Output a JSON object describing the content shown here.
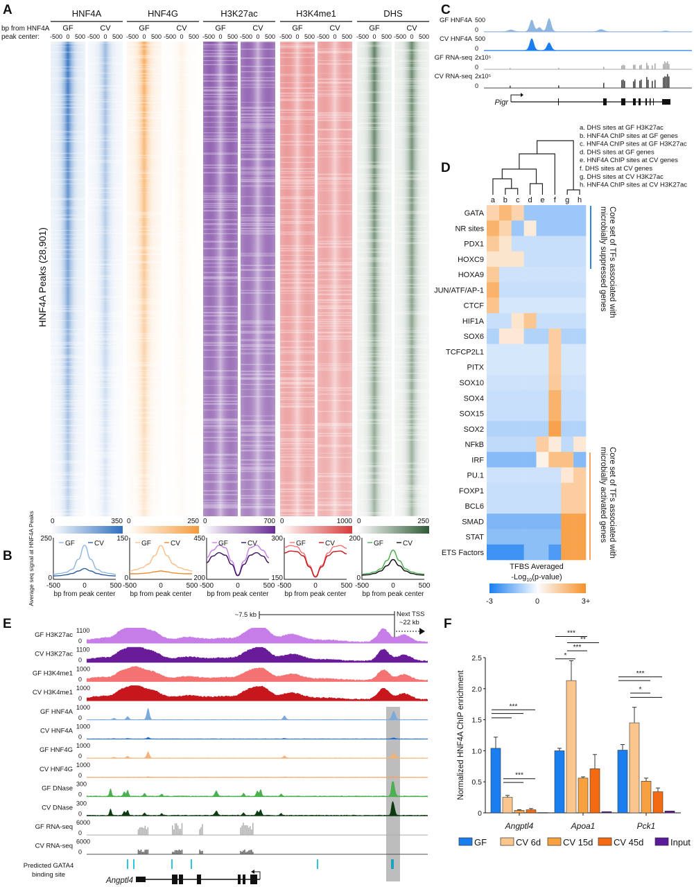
{
  "panels": {
    "A": "A",
    "B": "B",
    "C": "C",
    "D": "D",
    "E": "E",
    "F": "F"
  },
  "panelA": {
    "axis_label_1": "bp from HNF4A",
    "axis_label_2": "peak center:",
    "y_label": "HNF4A Peaks (28,901)",
    "conditions": [
      "GF",
      "CV"
    ],
    "ticks": [
      "-500",
      "0",
      "500"
    ],
    "colorbar_min": "0",
    "tracks": [
      {
        "name": "HNF4A",
        "color": "#2f6fbf",
        "max": "350"
      },
      {
        "name": "HNF4G",
        "color": "#f59a3c",
        "max": "250"
      },
      {
        "name": "H3K27ac",
        "color": "#6a2b95",
        "max": "700"
      },
      {
        "name": "H3K4me1",
        "color": "#d83a3a",
        "max": "1000"
      },
      {
        "name": "DHS",
        "color": "#2f5a35",
        "max": "250"
      }
    ]
  },
  "panelC": {
    "tracks": [
      {
        "label": "GF HNF4A",
        "scale": "500",
        "zero": "0",
        "color": "#8fb6e0"
      },
      {
        "label": "CV HNF4A",
        "scale": "500",
        "zero": "0",
        "color": "#1a7ef0"
      },
      {
        "label": "GF RNA-seq",
        "scale": "2x10⁵",
        "zero": "0",
        "color": "#a8a8a8"
      },
      {
        "label": "CV RNA-seq",
        "scale": "2x10⁵",
        "zero": "0",
        "color": "#444444"
      }
    ],
    "gene": "Pigr"
  },
  "panelE": {
    "scale_bar": "~7.5 kb",
    "next_tss_1": "Next TSS",
    "next_tss_2": "~22 kb",
    "tracks": [
      {
        "label": "GF H3K27ac",
        "scale": "1100",
        "zero": "0",
        "color": "#c77de8"
      },
      {
        "label": "CV H3K27ac",
        "scale": "1100",
        "zero": "0",
        "color": "#6a1b9a"
      },
      {
        "label": "GF H3K4me1",
        "scale": "1000",
        "zero": "0",
        "color": "#f47272"
      },
      {
        "label": "CV H3K4me1",
        "scale": "1000",
        "zero": "0",
        "color": "#c8161d"
      },
      {
        "label": "GF HNF4A",
        "scale": "1000",
        "zero": "0",
        "color": "#7aa9dc"
      },
      {
        "label": "CV HNF4A",
        "scale": "1000",
        "zero": "0",
        "color": "#1a6fd8"
      },
      {
        "label": "GF HNF4G",
        "scale": "1000",
        "zero": "0",
        "color": "#f5b27a"
      },
      {
        "label": "CV HNF4G",
        "scale": "1000",
        "zero": "0",
        "color": "#f5a060"
      },
      {
        "label": "GF DNase",
        "scale": "300",
        "zero": "0",
        "color": "#4caf50"
      },
      {
        "label": "CV DNase",
        "scale": "300",
        "zero": "0",
        "color": "#0d3b12"
      },
      {
        "label": "GF RNA-seq",
        "scale": "6000",
        "zero": "0",
        "color": "#aaaaaa"
      },
      {
        "label": "CV RNA-seq",
        "scale": "6000",
        "zero": "0",
        "color": "#555555"
      }
    ],
    "gata_label_1": "Predicted GATA4",
    "gata_label_2": "binding site",
    "gene": "Angptl4"
  },
  "chart_data": [
    {
      "panel": "B",
      "type": "line",
      "ylabel": "Average seq signal at HNF4A Peaks",
      "xlabel": "bp from peak center",
      "x": [
        -500,
        -400,
        -300,
        -200,
        -100,
        0,
        100,
        200,
        300,
        400,
        500
      ],
      "xticks": [
        "-500",
        "0",
        "500"
      ],
      "plots": [
        {
          "ylim": [
            0,
            250
          ],
          "yticks": [
            "0",
            "250"
          ],
          "series": [
            {
              "name": "GF",
              "color": "#8fb6e0",
              "values": [
                30,
                35,
                42,
                60,
                120,
                205,
                120,
                60,
                42,
                35,
                30
              ]
            },
            {
              "name": "CV",
              "color": "#2f5f9f",
              "values": [
                20,
                22,
                27,
                35,
                50,
                65,
                50,
                35,
                27,
                22,
                20
              ]
            }
          ]
        },
        {
          "ylim": [
            0,
            150
          ],
          "yticks": [
            "0",
            "150"
          ],
          "series": [
            {
              "name": "GF",
              "color": "#f8c08a",
              "values": [
                30,
                35,
                42,
                55,
                85,
                122,
                85,
                55,
                42,
                35,
                30
              ]
            },
            {
              "name": "CV",
              "color": "#f08a2a",
              "values": [
                20,
                20,
                21,
                23,
                27,
                30,
                27,
                23,
                21,
                20,
                20
              ]
            }
          ]
        },
        {
          "ylim": [
            200,
            450
          ],
          "yticks": [
            "200",
            "450"
          ],
          "series": [
            {
              "name": "GF",
              "color": "#c77de8",
              "values": [
                330,
                375,
                405,
                390,
                310,
                225,
                310,
                390,
                405,
                375,
                330
              ]
            },
            {
              "name": "CV",
              "color": "#3a0f5e",
              "values": [
                300,
                340,
                360,
                345,
                290,
                222,
                290,
                345,
                360,
                340,
                300
              ]
            }
          ]
        },
        {
          "ylim": [
            150,
            300
          ],
          "yticks": [
            "150",
            "300"
          ],
          "series": [
            {
              "name": "GF",
              "color": "#f47272",
              "values": [
                265,
                272,
                268,
                245,
                200,
                160,
                200,
                245,
                268,
                272,
                262
              ]
            },
            {
              "name": "CV",
              "color": "#c8161d",
              "values": [
                245,
                252,
                250,
                235,
                195,
                158,
                195,
                235,
                250,
                252,
                242
              ]
            }
          ]
        },
        {
          "ylim": [
            0,
            200
          ],
          "yticks": [
            "0",
            "200"
          ],
          "series": [
            {
              "name": "GF",
              "color": "#4caf50",
              "values": [
                25,
                28,
                35,
                50,
                90,
                140,
                90,
                50,
                35,
                28,
                25
              ]
            },
            {
              "name": "CV",
              "color": "#111111",
              "values": [
                20,
                22,
                28,
                40,
                65,
                95,
                65,
                40,
                28,
                22,
                20
              ]
            }
          ]
        }
      ]
    },
    {
      "panel": "D",
      "type": "heatmap",
      "columns": [
        "a",
        "b",
        "c",
        "d",
        "e",
        "f",
        "g",
        "h"
      ],
      "column_legend": [
        "a. DHS sites at GF H3K27ac",
        "b. HNF4A ChIP sites at GF genes",
        "c. HNF4A ChIP sites at GF H3K27ac",
        "d. DHS sites at GF genes",
        "e. HNF4A ChIP sites at CV genes",
        "f.  DHS sites at CV genes",
        "g. DHS sites at CV H3K27ac",
        "h. HNF4A ChIP sites at CV H3K27ac"
      ],
      "rows": [
        "GATA",
        "NR sites",
        "PDX1",
        "HOXC9",
        "HOXA9",
        "JUN/ATF/AP-1",
        "CTCF",
        "HIF1A",
        "SOX6",
        "TCFCP2L1",
        "PITX",
        "SOX10",
        "SOX4",
        "SOX15",
        "SOX2",
        "NFkB",
        "IRF",
        "PU.1",
        "FOXP1",
        "BCL6",
        "SMAD",
        "STAT",
        "ETS Factors"
      ],
      "values": [
        [
          1.0,
          1.8,
          1.0,
          -1.2,
          -1.2,
          -1.2,
          -1.2,
          -1.2
        ],
        [
          2.0,
          1.0,
          -1.2,
          0.3,
          -1.2,
          -1.2,
          -1.2,
          -1.2
        ],
        [
          1.3,
          0.5,
          -0.6,
          -0.6,
          -0.6,
          -0.6,
          -0.6,
          -0.6
        ],
        [
          0.5,
          0.5,
          0.5,
          -0.6,
          -0.6,
          -0.6,
          -0.6,
          -0.6
        ],
        [
          1.3,
          -0.5,
          -0.5,
          -0.5,
          -0.5,
          -0.5,
          -0.5,
          -0.5
        ],
        [
          2.0,
          -0.6,
          -0.6,
          -0.6,
          -0.6,
          -0.6,
          -0.6,
          -0.6
        ],
        [
          1.5,
          -0.4,
          -0.4,
          -0.4,
          -0.4,
          -0.4,
          -0.4,
          -0.4
        ],
        [
          -0.6,
          -0.6,
          0.5,
          1.4,
          -0.6,
          -0.6,
          -0.6,
          -0.6
        ],
        [
          -0.9,
          0.4,
          0.4,
          -0.9,
          -0.9,
          1.2,
          -0.9,
          -0.9
        ],
        [
          -0.4,
          -0.4,
          -0.4,
          -0.4,
          -0.4,
          1.2,
          -0.4,
          -0.4
        ],
        [
          -0.4,
          -0.4,
          -0.4,
          -0.4,
          -0.4,
          1.2,
          -0.4,
          -0.4
        ],
        [
          -0.5,
          -0.5,
          -0.5,
          -0.5,
          -0.5,
          1.3,
          -0.5,
          -0.5
        ],
        [
          -0.6,
          -0.6,
          -0.6,
          -0.6,
          -0.6,
          2.0,
          -0.6,
          -0.6
        ],
        [
          -0.6,
          -0.6,
          -0.6,
          -0.6,
          -0.6,
          2.0,
          -0.6,
          -0.6
        ],
        [
          -0.9,
          -0.9,
          -0.9,
          -0.9,
          -0.9,
          2.5,
          -0.9,
          -0.9
        ],
        [
          -0.7,
          -0.7,
          -0.7,
          -0.7,
          1.2,
          0.3,
          -0.7,
          0.4
        ],
        [
          -1.5,
          -1.5,
          -1.5,
          -1.5,
          0.1,
          1.6,
          1.6,
          -1.5
        ],
        [
          -0.5,
          -0.5,
          -0.5,
          -0.5,
          -0.5,
          -0.5,
          0.4,
          1.2
        ],
        [
          -0.6,
          -0.6,
          -0.6,
          -0.6,
          -0.6,
          -0.6,
          1.2,
          1.2
        ],
        [
          -0.6,
          -0.6,
          -0.6,
          -0.6,
          -0.6,
          -0.6,
          1.2,
          1.2
        ],
        [
          -1.6,
          -1.6,
          -1.6,
          -1.6,
          -1.6,
          -1.6,
          2.5,
          2.5
        ],
        [
          -1.4,
          -1.4,
          -1.4,
          -1.4,
          -1.4,
          -1.4,
          2.5,
          2.5
        ],
        [
          -2.5,
          -2.5,
          -2.5,
          -1.4,
          -1.4,
          -2.3,
          2.5,
          2.5
        ]
      ],
      "colorbar_title_1": "TFBS Averaged",
      "colorbar_title_2": "-Log",
      "colorbar_title_sub": "10",
      "colorbar_title_3": "(p-value)",
      "colorbar_ticks": [
        "-3",
        "0",
        "3+"
      ],
      "range": [
        -3,
        3
      ],
      "negative_color": "#1a7ef0",
      "positive_color": "#f7922a",
      "annotation_suppressed": [
        "Core set of TFs associated with",
        "microbially suppressed genes"
      ],
      "annotation_activated": [
        "Core set of TFs associated with",
        "microbially activated genes"
      ],
      "suppressed_color": "#2a86e0",
      "activated_color": "#f08a2a"
    },
    {
      "panel": "F",
      "type": "bar",
      "ylabel": "Normalized HNF4A ChIP enrichment",
      "ylim": [
        0,
        2.5
      ],
      "yticks": [
        "0",
        "0.5",
        "1.0",
        "1.5",
        "2.0",
        "2.5"
      ],
      "categories": [
        "Angptl4",
        "Apoa1",
        "Pck1"
      ],
      "series": [
        {
          "name": "GF",
          "color": "#1a7ef0",
          "values": [
            1.04,
            1.0,
            1.01
          ],
          "errors": [
            0.18,
            0.04,
            0.09
          ]
        },
        {
          "name": "CV 6d",
          "color": "#fbc58e",
          "values": [
            0.25,
            2.13,
            1.45
          ],
          "errors": [
            0.03,
            0.32,
            0.25
          ]
        },
        {
          "name": "CV 15d",
          "color": "#f7a040",
          "values": [
            0.04,
            0.56,
            0.51
          ],
          "errors": [
            0.01,
            0.02,
            0.05
          ]
        },
        {
          "name": "CV 45d",
          "color": "#f46a10",
          "values": [
            0.05,
            0.71,
            0.34
          ],
          "errors": [
            0.02,
            0.23,
            0.06
          ]
        },
        {
          "name": "Input",
          "color": "#5a1a9a",
          "values": [
            0.005,
            0.02,
            0.03
          ],
          "errors": [
            0,
            0,
            0
          ]
        }
      ],
      "significance": [
        {
          "category": 0,
          "from": 0,
          "to": 1,
          "y": 1.53,
          "label": ""
        },
        {
          "category": 0,
          "from": 0,
          "to": 2,
          "y": 1.6,
          "label": ""
        },
        {
          "category": 0,
          "from": 0,
          "to": 3,
          "y": 1.66,
          "label": "***"
        },
        {
          "category": 0,
          "from": 1,
          "to": 2,
          "y": 0.49,
          "label": ""
        },
        {
          "category": 0,
          "from": 1,
          "to": 3,
          "y": 0.55,
          "label": "***"
        },
        {
          "category": 1,
          "from": 0,
          "to": 2,
          "y": 2.84,
          "label": "***"
        },
        {
          "category": 1,
          "from": 1,
          "to": 3,
          "y": 2.74,
          "label": "**"
        },
        {
          "category": 1,
          "from": 1,
          "to": 2,
          "y": 2.61,
          "label": "***"
        },
        {
          "category": 1,
          "from": 0,
          "to": 1,
          "y": 2.48,
          "label": "*"
        },
        {
          "category": 2,
          "from": 0,
          "to": 2,
          "y": 2.13,
          "label": ""
        },
        {
          "category": 2,
          "from": 0,
          "to": 3,
          "y": 2.19,
          "label": "***"
        },
        {
          "category": 2,
          "from": 1,
          "to": 2,
          "y": 1.93,
          "label": "*"
        },
        {
          "category": 2,
          "from": 1,
          "to": 3,
          "y": 1.86,
          "label": ""
        }
      ],
      "legend": "bottom"
    }
  ]
}
